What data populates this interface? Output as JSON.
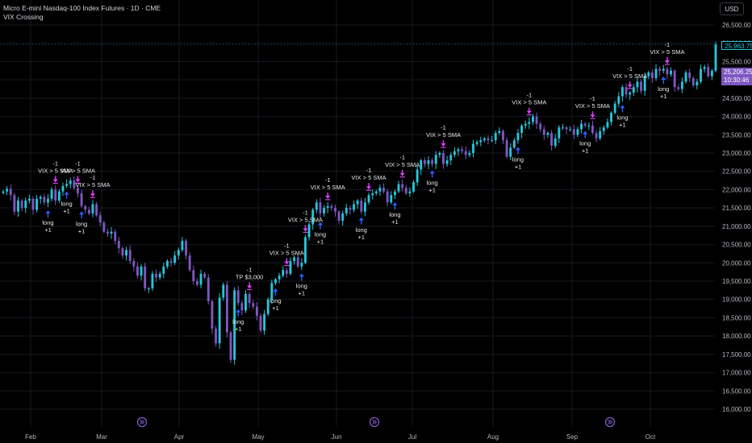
{
  "header": {
    "title": "Micro E-mini Nasdaq-100 Index Futures · 1D · CME",
    "indicator": "VIX Crossing",
    "currency": "USD"
  },
  "price_axis": {
    "ticks": [
      "26,500.00",
      "26,000.00",
      "25,500.00",
      "25,000.00",
      "24,500.00",
      "24,000.00",
      "23,500.00",
      "23,000.00",
      "22,500.00",
      "22,000.00",
      "21,500.00",
      "21,000.00",
      "20,500.00",
      "20,000.00",
      "19,500.00",
      "19,000.00",
      "18,500.00",
      "18,000.00",
      "17,500.00",
      "17,000.00",
      "16,500.00",
      "16,000.00"
    ],
    "tick_values": [
      26500,
      26000,
      25500,
      25000,
      24500,
      24000,
      23500,
      23000,
      22500,
      22000,
      21500,
      21000,
      20500,
      20000,
      19500,
      19000,
      18500,
      18000,
      17500,
      17000,
      16500,
      16000
    ]
  },
  "time_axis": {
    "labels": [
      "Feb",
      "Mar",
      "Apr",
      "May",
      "Jun",
      "Jul",
      "Aug",
      "Sep",
      "Oct"
    ]
  },
  "price_tags": {
    "last": "25,963.75",
    "current_price": "25,206.25",
    "countdown": "10:30:46"
  },
  "colors": {
    "up": "#26c6da",
    "down": "#7e57c2",
    "exit_marker": "#e040fb",
    "entry_marker": "#2962ff",
    "grid": "#161a22"
  },
  "chart_data": {
    "type": "candlestick",
    "ylim": [
      16000,
      26600
    ],
    "closes": [
      21950,
      22020,
      21850,
      21400,
      21700,
      21500,
      21700,
      21750,
      21450,
      21750,
      21800,
      21650,
      21750,
      22000,
      21700,
      21950,
      22100,
      22150,
      22250,
      22050,
      21900,
      21550,
      21450,
      21350,
      21600,
      21300,
      21100,
      20850,
      20800,
      20850,
      20600,
      20400,
      20200,
      20350,
      20050,
      19900,
      19650,
      19900,
      19300,
      19300,
      19700,
      19600,
      19700,
      19900,
      20050,
      20000,
      20200,
      20350,
      20600,
      20200,
      19800,
      19500,
      19400,
      19700,
      19600,
      18950,
      18200,
      17800,
      19050,
      19400,
      18100,
      17350,
      19250,
      18900,
      18700,
      19150,
      18900,
      18800,
      18550,
      18150,
      18600,
      19000,
      19450,
      19550,
      19650,
      19800,
      19700,
      20050,
      20150,
      19900,
      20000,
      20700,
      21050,
      21450,
      21650,
      21350,
      21500,
      21550,
      21500,
      21400,
      21150,
      21350,
      21500,
      21450,
      21600,
      21700,
      21400,
      21650,
      21850,
      21900,
      21950,
      22050,
      21950,
      21650,
      21850,
      21950,
      22150,
      22050,
      21900,
      21950,
      22200,
      22550,
      22800,
      22700,
      22800,
      22700,
      22950,
      23000,
      22700,
      22800,
      22950,
      23050,
      23100,
      23050,
      22950,
      23000,
      23250,
      23300,
      23350,
      23400,
      23350,
      23350,
      23550,
      23600,
      23350,
      22900,
      23150,
      23350,
      23550,
      23750,
      23800,
      23850,
      24000,
      23800,
      23650,
      23500,
      23550,
      23200,
      23400,
      23700,
      23700,
      23650,
      23650,
      23500,
      23650,
      23800,
      23750,
      23750,
      23550,
      23400,
      23600,
      23700,
      23850,
      24100,
      24350,
      24550,
      24800,
      24600,
      24650,
      24800,
      24950,
      24700,
      25100,
      25200,
      25050,
      25300,
      25250,
      25300,
      25150,
      25250,
      24800,
      24750,
      24950,
      25200,
      25050,
      24850,
      24950,
      25300,
      25350,
      25100,
      25250,
      25963
    ],
    "signals": [
      {
        "type": "exit",
        "label": "VIX > 5 SMA",
        "qty": "-1"
      },
      {
        "type": "entry",
        "label": "long",
        "qty": "+1"
      },
      {
        "type": "exit",
        "label": "VIX > 5 SMA",
        "qty": "-1"
      },
      {
        "type": "entry",
        "label": "long",
        "qty": "+1"
      },
      {
        "type": "exit",
        "label": "VIX > 5 SMA",
        "qty": "-1"
      },
      {
        "type": "entry",
        "label": "long",
        "qty": "+1"
      },
      {
        "type": "exit",
        "label": "TP $3,000",
        "qty": "-1"
      },
      {
        "type": "entry",
        "label": "long",
        "qty": "+1"
      },
      {
        "type": "exit",
        "label": "VIX > 5 SMA",
        "qty": "-1"
      },
      {
        "type": "entry",
        "label": "long",
        "qty": "+1"
      },
      {
        "type": "exit",
        "label": "VIX > 5 SMA",
        "qty": "-1"
      },
      {
        "type": "entry",
        "label": "long",
        "qty": "+1"
      },
      {
        "type": "exit",
        "label": "VIX > 5 SMA",
        "qty": "-1"
      },
      {
        "type": "entry",
        "label": "long",
        "qty": "+1"
      },
      {
        "type": "exit",
        "label": "VIX > 5 SMA",
        "qty": "-1"
      },
      {
        "type": "entry",
        "label": "long",
        "qty": "+1"
      },
      {
        "type": "exit",
        "label": "VIX > 5 SMA",
        "qty": "-1"
      },
      {
        "type": "entry",
        "label": "long",
        "qty": "+1"
      },
      {
        "type": "exit",
        "label": "VIX > 5 SMA",
        "qty": "-1"
      },
      {
        "type": "entry",
        "label": "long",
        "qty": "+1"
      },
      {
        "type": "exit",
        "label": "VIX > 5 SMA",
        "qty": "-1"
      },
      {
        "type": "entry",
        "label": "long",
        "qty": "+1"
      },
      {
        "type": "exit",
        "label": "VIX > 5 SMA",
        "qty": "-1"
      },
      {
        "type": "entry",
        "label": "long",
        "qty": "+1"
      },
      {
        "type": "exit",
        "label": "VIX > 5 SMA",
        "qty": "-1"
      },
      {
        "type": "entry",
        "label": "long",
        "qty": "+1"
      },
      {
        "type": "exit",
        "label": "VIX > 5 SMA",
        "qty": "-1"
      },
      {
        "type": "entry",
        "label": "long",
        "qty": "+1"
      }
    ]
  },
  "event_icons": [
    "event-marker-icon",
    "event-marker-icon",
    "event-marker-icon"
  ]
}
